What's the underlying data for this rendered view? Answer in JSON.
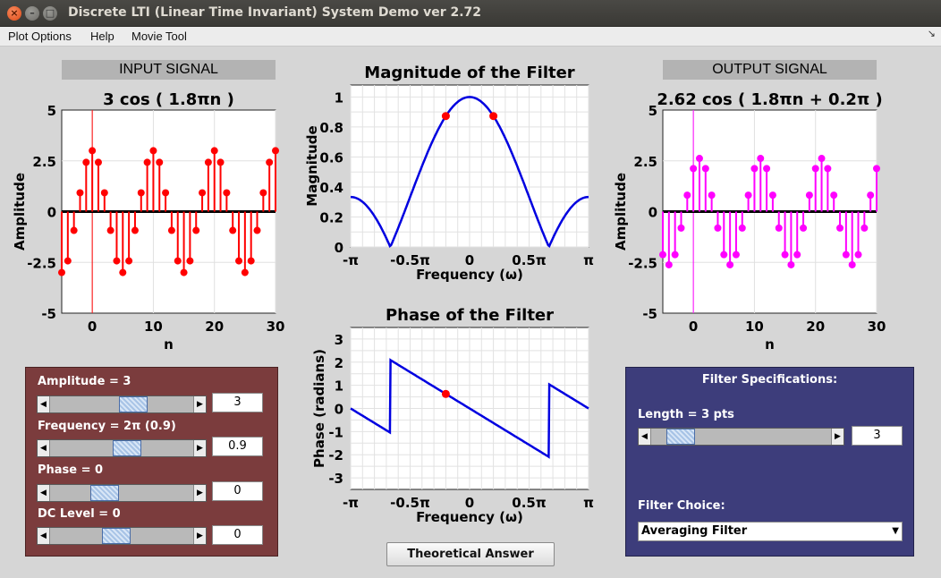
{
  "window": {
    "title": "Discrete LTI (Linear Time Invariant) System Demo ver 2.72"
  },
  "menu": [
    "Plot Options",
    "Help",
    "Movie Tool"
  ],
  "input": {
    "header": "INPUT SIGNAL",
    "signal_title": "3 cos ( 1.8πn )",
    "controls": [
      {
        "label": "Amplitude = 3",
        "value": "3",
        "slider_fraction": 0.6
      },
      {
        "label": "Frequency = 2π (0.9)",
        "value": "0.9",
        "slider_fraction": 0.55
      },
      {
        "label": "Phase = 0",
        "value": "0",
        "slider_fraction": 0.35
      },
      {
        "label": "DC Level = 0",
        "value": "0",
        "slider_fraction": 0.45
      }
    ]
  },
  "output": {
    "header": "OUTPUT SIGNAL",
    "signal_title": "2.62 cos ( 1.8πn + 0.2π )"
  },
  "filter_panel": {
    "title": "Filter Specifications:",
    "length_label": "Length = 3 pts",
    "length_value": "3",
    "length_slider_fraction": 0.1,
    "choice_label": "Filter Choice:",
    "choice_value": "Averaging Filter"
  },
  "theoretical_button": "Theoretical Answer",
  "colors": {
    "input": "#ff0000",
    "output": "#ff00ff",
    "filter": "#0000e0",
    "marker": "#ff0000"
  },
  "chart_data": [
    {
      "type": "stem",
      "title": "3 cos ( 1.8πn )",
      "xlabel": "n",
      "ylabel": "Amplitude",
      "xlim": [
        -5,
        30
      ],
      "ylim": [
        -5,
        5
      ],
      "xticks": [
        "0",
        "10",
        "20",
        "30"
      ],
      "yticks": [
        "5",
        "2.5",
        "0",
        "-2.5",
        "-5"
      ],
      "amplitude": 3,
      "frequency": 0.9,
      "phase": 0,
      "n_range": [
        -5,
        30
      ],
      "color": "#ff0000"
    },
    {
      "type": "line",
      "title": "Magnitude of the Filter",
      "xlabel": "Frequency (ω)",
      "ylabel": "Magnitude",
      "xticks": [
        "-π",
        "-0.5π",
        "0",
        "0.5π",
        "π"
      ],
      "yticks": [
        "1",
        "0.8",
        "0.6",
        "0.4",
        "0.2",
        "0"
      ],
      "xlim": [
        -1,
        1
      ],
      "ylim": [
        0,
        1.08
      ],
      "function": "|1+2cos(ω)|/3",
      "markers": [
        {
          "x": -0.2,
          "y": 0.873
        },
        {
          "x": 0.2,
          "y": 0.873
        }
      ],
      "color": "#0000e0"
    },
    {
      "type": "line",
      "title": "Phase of the Filter",
      "xlabel": "Frequency (ω)",
      "ylabel": "Phase (radians)",
      "xticks": [
        "-π",
        "-0.5π",
        "0",
        "0.5π",
        "π"
      ],
      "yticks": [
        "3",
        "2",
        "1",
        "0",
        "-1",
        "-2",
        "-3"
      ],
      "xlim": [
        -1,
        1
      ],
      "ylim": [
        -3.5,
        3.5
      ],
      "markers": [
        {
          "x": -0.2,
          "y": 0.628
        }
      ],
      "color": "#0000e0"
    },
    {
      "type": "stem",
      "title": "2.62 cos ( 1.8πn + 0.2π )",
      "xlabel": "n",
      "ylabel": "Amplitude",
      "xlim": [
        -5,
        30
      ],
      "ylim": [
        -5,
        5
      ],
      "xticks": [
        "0",
        "10",
        "20",
        "30"
      ],
      "yticks": [
        "5",
        "2.5",
        "0",
        "-2.5",
        "-5"
      ],
      "amplitude": 2.62,
      "frequency": 0.9,
      "phase": 0.2,
      "n_range": [
        -5,
        30
      ],
      "color": "#ff00ff"
    }
  ]
}
